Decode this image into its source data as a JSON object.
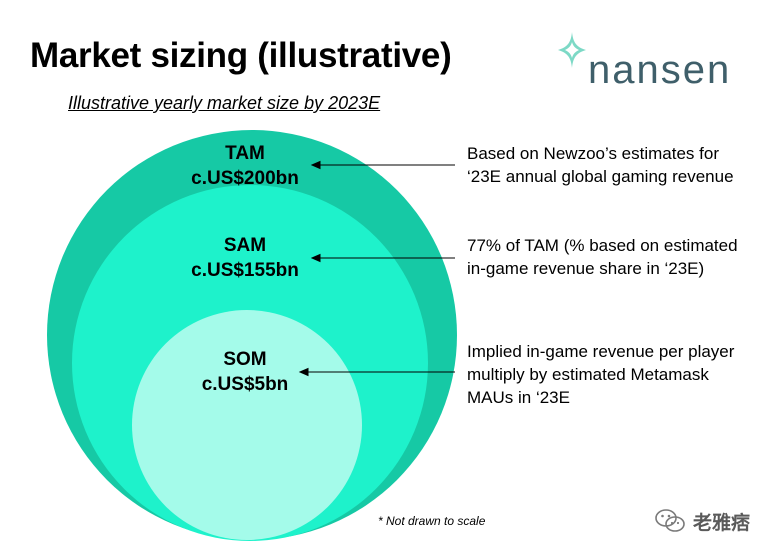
{
  "header": {
    "title": "Market sizing (illustrative)",
    "subtitle": "Illustrative yearly market size by 2023E"
  },
  "brand": {
    "logo_text": "nansen",
    "logo_icon": "nansen-diamond-icon",
    "color": "#7dd9c6"
  },
  "diagram": {
    "circles": [
      {
        "name": "TAM",
        "value": "c.US$200bn",
        "color": "#16c9a5",
        "description": [
          "Based on Newzoo’s estimates for",
          "‘23E annual global gaming revenue"
        ]
      },
      {
        "name": "SAM",
        "value": "c.US$155bn",
        "color": "#1ef2cb",
        "description": [
          "77% of TAM (% based on estimated",
          "in-game revenue share in ‘23E)"
        ]
      },
      {
        "name": "SOM",
        "value": "c.US$5bn",
        "color": "#a4fbea",
        "description": [
          "Implied in-game revenue per player",
          "multiply by estimated Metamask",
          "MAUs in ‘23E"
        ]
      }
    ]
  },
  "footnote": "* Not drawn to scale",
  "watermark": {
    "text": "老雅痞",
    "icon": "wechat-icon"
  }
}
